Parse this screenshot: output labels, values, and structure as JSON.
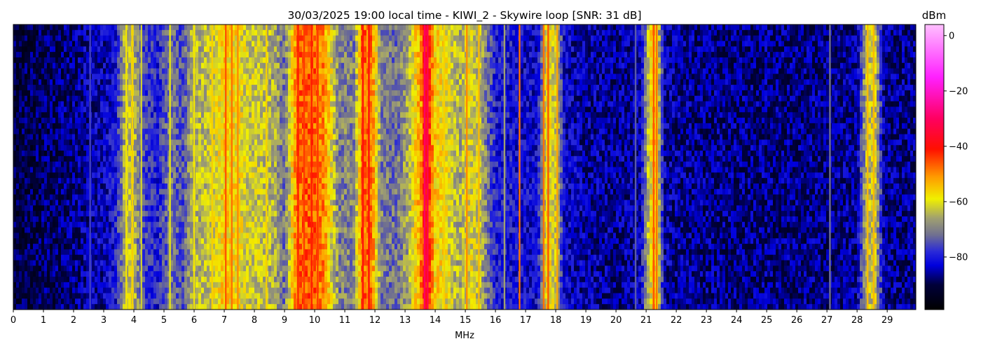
{
  "chart_data": {
    "type": "heatmap",
    "title": "30/03/2025 19:00 local time - KIWI_2 - Skywire loop [SNR: 31 dB]",
    "xlabel": "MHz",
    "ylabel": "",
    "xlim": [
      0,
      29.95
    ],
    "x_ticks": [
      0,
      1,
      2,
      3,
      4,
      5,
      6,
      7,
      8,
      9,
      10,
      11,
      12,
      13,
      14,
      15,
      16,
      17,
      18,
      19,
      20,
      21,
      22,
      23,
      24,
      25,
      26,
      27,
      28,
      29
    ],
    "colorbar": {
      "label": "dBm",
      "range": [
        -99,
        4
      ],
      "ticks": [
        0,
        -20,
        -40,
        -60,
        -80
      ],
      "colors": [
        {
          "v": -99,
          "c": "#000000"
        },
        {
          "v": -90,
          "c": "#00003a"
        },
        {
          "v": -83,
          "c": "#0000dd"
        },
        {
          "v": -78,
          "c": "#2a2ad8"
        },
        {
          "v": -72,
          "c": "#707090"
        },
        {
          "v": -66,
          "c": "#a0a070"
        },
        {
          "v": -59,
          "c": "#f0f000"
        },
        {
          "v": -51,
          "c": "#ff9a00"
        },
        {
          "v": -41,
          "c": "#ff1000"
        },
        {
          "v": -30,
          "c": "#ff0060"
        },
        {
          "v": -15,
          "c": "#ff20ff"
        },
        {
          "v": 4,
          "c": "#ffc0ff"
        }
      ]
    },
    "spectrum_profile_mhz_dbm": [
      [
        0,
        -91
      ],
      [
        1,
        -89
      ],
      [
        2,
        -87
      ],
      [
        2.55,
        -84
      ],
      [
        3,
        -84
      ],
      [
        3.4,
        -80
      ],
      [
        3.7,
        -65
      ],
      [
        3.95,
        -62
      ],
      [
        4.3,
        -76
      ],
      [
        4.8,
        -80
      ],
      [
        5.2,
        -70
      ],
      [
        5.6,
        -76
      ],
      [
        5.9,
        -66
      ],
      [
        6.5,
        -63
      ],
      [
        7.0,
        -56
      ],
      [
        7.4,
        -58
      ],
      [
        7.8,
        -62
      ],
      [
        8.3,
        -63
      ],
      [
        8.7,
        -66
      ],
      [
        9.0,
        -72
      ],
      [
        9.4,
        -48
      ],
      [
        9.9,
        -46
      ],
      [
        10.3,
        -50
      ],
      [
        10.8,
        -70
      ],
      [
        11.3,
        -70
      ],
      [
        11.6,
        -47
      ],
      [
        11.9,
        -48
      ],
      [
        12.2,
        -70
      ],
      [
        12.7,
        -72
      ],
      [
        13.1,
        -66
      ],
      [
        13.5,
        -52
      ],
      [
        13.7,
        -38
      ],
      [
        14.0,
        -56
      ],
      [
        14.4,
        -60
      ],
      [
        14.8,
        -66
      ],
      [
        15.1,
        -60
      ],
      [
        15.5,
        -64
      ],
      [
        16.0,
        -80
      ],
      [
        16.4,
        -80
      ],
      [
        16.8,
        -82
      ],
      [
        17.4,
        -82
      ],
      [
        17.7,
        -58
      ],
      [
        18.0,
        -62
      ],
      [
        18.3,
        -83
      ],
      [
        19.0,
        -85
      ],
      [
        20.0,
        -86
      ],
      [
        20.8,
        -84
      ],
      [
        21.1,
        -62
      ],
      [
        21.3,
        -52
      ],
      [
        21.6,
        -84
      ],
      [
        22.0,
        -86
      ],
      [
        24.0,
        -87
      ],
      [
        26.0,
        -87
      ],
      [
        28.0,
        -86
      ],
      [
        28.3,
        -64
      ],
      [
        28.6,
        -62
      ],
      [
        28.9,
        -86
      ],
      [
        29.95,
        -87
      ]
    ],
    "signals_mhz": [
      {
        "f": 2.55,
        "dbm": -76
      },
      {
        "f": 3.75,
        "dbm": -58
      },
      {
        "f": 3.95,
        "dbm": -56
      },
      {
        "f": 4.25,
        "dbm": -62
      },
      {
        "f": 5.2,
        "dbm": -60
      },
      {
        "f": 6.0,
        "dbm": -58
      },
      {
        "f": 6.6,
        "dbm": -56
      },
      {
        "f": 7.05,
        "dbm": -46
      },
      {
        "f": 7.25,
        "dbm": -48
      },
      {
        "f": 7.45,
        "dbm": -50
      },
      {
        "f": 8.4,
        "dbm": -56
      },
      {
        "f": 9.45,
        "dbm": -42
      },
      {
        "f": 9.65,
        "dbm": -44
      },
      {
        "f": 9.9,
        "dbm": -42
      },
      {
        "f": 10.1,
        "dbm": -44
      },
      {
        "f": 11.6,
        "dbm": -40
      },
      {
        "f": 11.8,
        "dbm": -40
      },
      {
        "f": 13.65,
        "dbm": -30
      },
      {
        "f": 13.75,
        "dbm": -32
      },
      {
        "f": 14.3,
        "dbm": -56
      },
      {
        "f": 15.05,
        "dbm": -50
      },
      {
        "f": 15.45,
        "dbm": -54
      },
      {
        "f": 16.3,
        "dbm": -66
      },
      {
        "f": 16.8,
        "dbm": -48
      },
      {
        "f": 17.6,
        "dbm": -48
      },
      {
        "f": 17.75,
        "dbm": -46
      },
      {
        "f": 18.05,
        "dbm": -52
      },
      {
        "f": 20.65,
        "dbm": -74
      },
      {
        "f": 21.25,
        "dbm": -46
      },
      {
        "f": 21.35,
        "dbm": -48
      },
      {
        "f": 27.1,
        "dbm": -72
      },
      {
        "f": 28.35,
        "dbm": -54
      },
      {
        "f": 28.55,
        "dbm": -54
      }
    ],
    "grid": false,
    "legend": "colorbar-right"
  }
}
